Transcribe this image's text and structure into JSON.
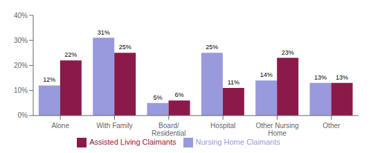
{
  "chart_data": {
    "type": "bar",
    "categories": [
      "Alone",
      "With Family",
      "Board/\nResidential",
      "Hospital",
      "Other Nursing\nHome",
      "Other"
    ],
    "series": [
      {
        "name": "Nursing Home Claimants",
        "color": "#9999dd",
        "values": [
          12,
          31,
          5,
          25,
          14,
          13
        ],
        "value_labels": [
          "12%",
          "31%",
          "5%",
          "25%",
          "14%",
          "13%"
        ]
      },
      {
        "name": "Assisted Living Claimants",
        "color": "#8b1a4a",
        "values": [
          22,
          25,
          6,
          11,
          23,
          13
        ],
        "value_labels": [
          "22%",
          "25%",
          "6%",
          "11%",
          "23%",
          "13%"
        ]
      }
    ],
    "ylim": [
      0,
      40
    ],
    "yticks": [
      {
        "value": 0,
        "label": "0%"
      },
      {
        "value": 10,
        "label": "10%"
      },
      {
        "value": 20,
        "label": "20%"
      },
      {
        "value": 30,
        "label": "30%"
      },
      {
        "value": 40,
        "label": "40%"
      }
    ],
    "grid": false,
    "data_labels": true,
    "legend": "bottom"
  }
}
